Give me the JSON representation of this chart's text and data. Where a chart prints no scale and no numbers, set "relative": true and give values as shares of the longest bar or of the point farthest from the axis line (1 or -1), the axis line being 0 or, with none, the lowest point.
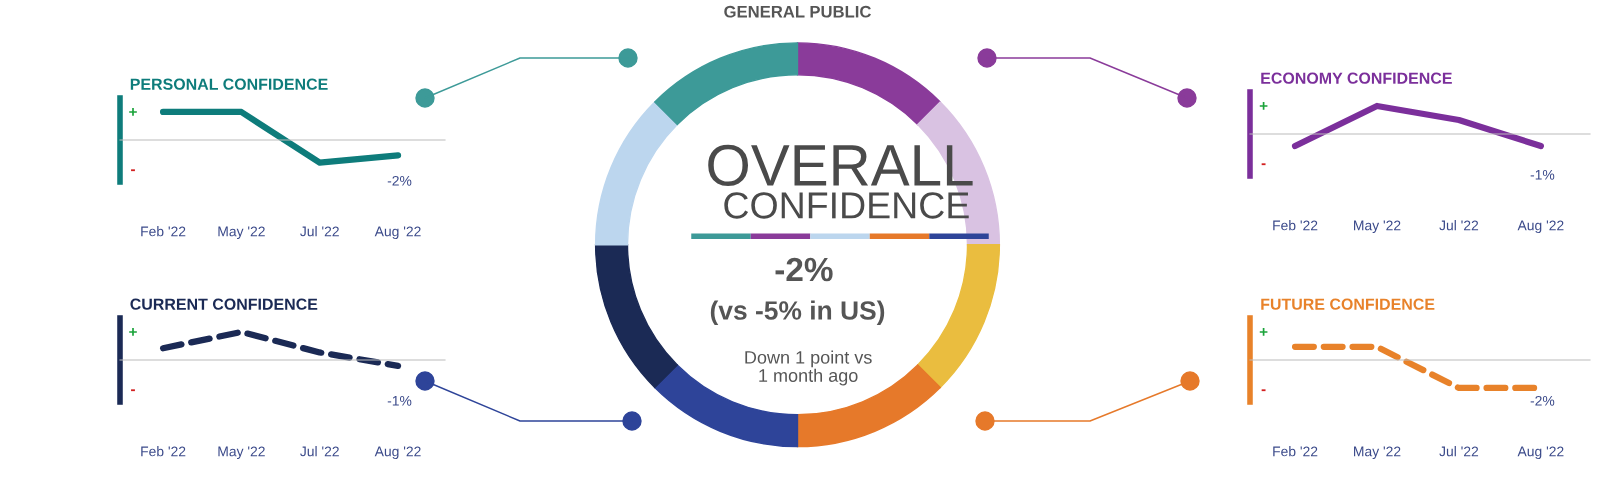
{
  "chart_data": [
    {
      "type": "line",
      "title": "PERSONAL CONFIDENCE",
      "relative": true,
      "categories": [
        "Feb '22",
        "May '22",
        "Jul '22",
        "Aug '22"
      ],
      "legend": false,
      "grid": false,
      "line_style": "solid",
      "annotations": [
        "+",
        "-",
        "-2%"
      ],
      "series": [
        {
          "color": "#0e7c7b",
          "values": [
            1,
            1,
            -0.81,
            -0.55
          ]
        }
      ]
    },
    {
      "type": "other",
      "title": "GENERAL PUBLIC",
      "annotations": [
        "OVERALL",
        "CONFIDENCE",
        "-2%",
        "(vs -5% in US)",
        "Down 1 point vs\n1 month ago"
      ]
    },
    {
      "type": "line",
      "title": "ECONOMY CONFIDENCE",
      "relative": true,
      "categories": [
        "Feb '22",
        "May '22",
        "Jul '22",
        "Aug '22"
      ],
      "legend": false,
      "grid": false,
      "line_style": "solid",
      "annotations": [
        "+",
        "-",
        "-1%"
      ],
      "series": [
        {
          "color": "#7b2f9b",
          "values": [
            -0.43,
            1,
            0.5,
            -0.43
          ]
        }
      ]
    },
    {
      "type": "line",
      "title": "CURRENT CONFIDENCE",
      "relative": true,
      "categories": [
        "Feb '22",
        "May '22",
        "Jul '22",
        "Aug '22"
      ],
      "legend": false,
      "grid": false,
      "line_style": "dashed",
      "annotations": [
        "+",
        "-",
        "-1%"
      ],
      "series": [
        {
          "color": "#1b2a55",
          "values": [
            0.42,
            1,
            0.27,
            -0.21
          ]
        }
      ]
    },
    {
      "type": "line",
      "title": "FUTURE CONFIDENCE",
      "relative": true,
      "categories": [
        "Feb '22",
        "May '22",
        "Jul '22",
        "Aug '22"
      ],
      "legend": false,
      "grid": false,
      "line_style": "dashed",
      "annotations": [
        "+",
        "-",
        "-2%"
      ],
      "series": [
        {
          "color": "#e8822a",
          "values": [
            0.47,
            0.47,
            -1,
            -1
          ]
        }
      ]
    }
  ]
}
